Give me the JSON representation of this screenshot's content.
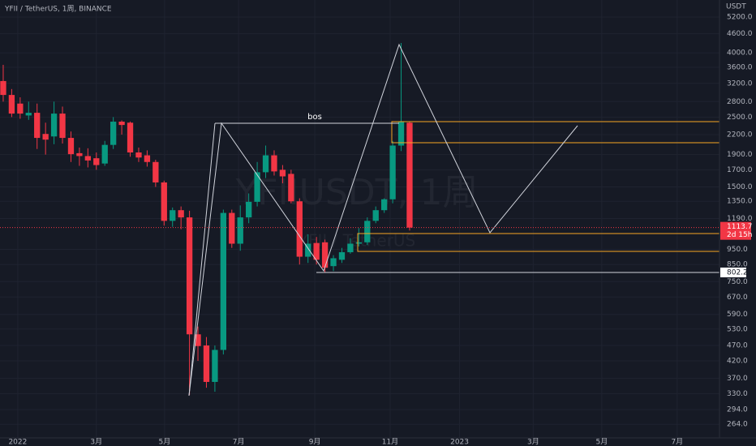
{
  "chart_data": {
    "type": "candlestick",
    "title": "YFII / TetherUS, 1周, BINANCE",
    "watermark": "YFIIUSDT, 1周",
    "watermark_subtitle": "YFII / TetherUS",
    "y_axis_label": "USDT",
    "log_scale": true,
    "grid": true,
    "up_color": "#089981",
    "down_color": "#f23645",
    "open": [
      3255,
      2940,
      2760,
      2530,
      2580,
      2210,
      2170,
      2565,
      2147,
      1920,
      1880,
      1850,
      1780,
      2040,
      2418,
      2400,
      1930,
      1890,
      1800,
      1550,
      1170,
      1265,
      1200,
      510,
      470,
      360,
      455,
      1240,
      990,
      1200,
      1345,
      1670,
      1890,
      1700,
      1650,
      1350,
      900,
      995,
      1000,
      840,
      880,
      930,
      990,
      1000,
      1170,
      1265,
      1370,
      2030,
      2400
    ],
    "high": [
      3665,
      3070,
      2890,
      2800,
      2760,
      2400,
      2800,
      2700,
      2250,
      2000,
      1990,
      1930,
      2100,
      2500,
      2440,
      2420,
      2000,
      1960,
      1830,
      1570,
      1290,
      1300,
      1260,
      540,
      500,
      470,
      1270,
      1270,
      1310,
      1430,
      1800,
      2030,
      1960,
      1760,
      1700,
      1380,
      1060,
      1040,
      1020,
      910,
      960,
      1030,
      1110,
      1200,
      1300,
      1380,
      2100,
      4300,
      2420
    ],
    "low": [
      2800,
      2500,
      2470,
      2450,
      1980,
      1900,
      2050,
      2060,
      1800,
      1750,
      1730,
      1700,
      1750,
      1980,
      2200,
      1870,
      1800,
      1740,
      1500,
      1130,
      1120,
      1100,
      327,
      420,
      345,
      335,
      440,
      960,
      940,
      1150,
      1300,
      1600,
      1630,
      1540,
      1330,
      850,
      860,
      850,
      802.2,
      810,
      860,
      920,
      970,
      980,
      1150,
      1240,
      1330,
      1950,
      1090
    ],
    "close": [
      2940,
      2565,
      2565,
      2580,
      2147,
      2120,
      2565,
      2147,
      1906,
      1880,
      1820,
      1760,
      2040,
      2418,
      2360,
      1930,
      1860,
      1800,
      1550,
      1170,
      1265,
      1200,
      510,
      468,
      360,
      455,
      1240,
      990,
      1200,
      1345,
      1670,
      1890,
      1680,
      1620,
      1350,
      900,
      990,
      880,
      830,
      890,
      930,
      990,
      1000,
      1170,
      1265,
      1370,
      2030,
      2420,
      1113.7
    ],
    "xlim": [
      -0.38,
      84.6
    ],
    "xticks": [
      {
        "value": 1.72,
        "label": "2022"
      },
      {
        "value": 11.0,
        "label": "3月"
      },
      {
        "value": 19.06,
        "label": "5月"
      },
      {
        "value": 27.8,
        "label": "7月"
      },
      {
        "value": 36.8,
        "label": "9月"
      },
      {
        "value": 45.7,
        "label": "11月"
      },
      {
        "value": 53.9,
        "label": "2023"
      },
      {
        "value": 62.6,
        "label": "3月"
      },
      {
        "value": 70.7,
        "label": "5月"
      },
      {
        "value": 79.6,
        "label": "7月"
      }
    ],
    "ylim": [
      239,
      5890
    ],
    "yticks": [
      {
        "value": 5200,
        "label": "5200.0"
      },
      {
        "value": 4600,
        "label": "4600.0"
      },
      {
        "value": 4000,
        "label": "4000.0"
      },
      {
        "value": 3600,
        "label": "3600.0"
      },
      {
        "value": 3200,
        "label": "3200.0"
      },
      {
        "value": 2800,
        "label": "2800.0"
      },
      {
        "value": 2500,
        "label": "2500.0"
      },
      {
        "value": 2200,
        "label": "2200.0"
      },
      {
        "value": 1900,
        "label": "1900.0"
      },
      {
        "value": 1700,
        "label": "1700.0"
      },
      {
        "value": 1500,
        "label": "1500.0"
      },
      {
        "value": 1350,
        "label": "1350.0"
      },
      {
        "value": 1190,
        "label": "1190.0"
      },
      {
        "value": 950,
        "label": "950.0"
      },
      {
        "value": 850,
        "label": "850.0"
      },
      {
        "value": 750,
        "label": "750.0"
      },
      {
        "value": 670,
        "label": "670.0"
      },
      {
        "value": 590,
        "label": "590.0"
      },
      {
        "value": 530,
        "label": "530.0"
      },
      {
        "value": 470,
        "label": "470.0"
      },
      {
        "value": 420,
        "label": "420.0"
      },
      {
        "value": 370,
        "label": "370.0"
      },
      {
        "value": 330,
        "label": "330.0"
      },
      {
        "value": 294,
        "label": "294.0"
      },
      {
        "value": 264,
        "label": "264.0"
      }
    ],
    "last_price": 1113.7,
    "countdown": "2d 15h",
    "level": 802.2,
    "annotation": "bos"
  }
}
